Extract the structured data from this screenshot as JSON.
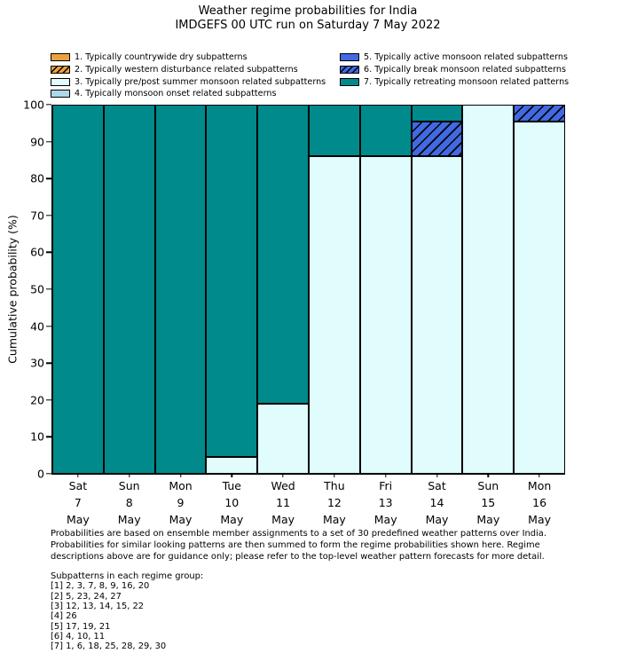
{
  "chart_data": {
    "type": "stacked-bar",
    "title": "Weather regime probabilities for India",
    "subtitle": "IMDGEFS 00 UTC run on Saturday 7 May 2022",
    "ylabel": "Cumulative probability (%)",
    "ylim": [
      0,
      100
    ],
    "yticks": [
      0,
      10,
      20,
      30,
      40,
      50,
      60,
      70,
      80,
      90,
      100
    ],
    "legend_position": "upper-left-two-columns",
    "bars": [
      {
        "day": "Sat",
        "date": "7",
        "month": "May",
        "segments": [
          {
            "regime": 7,
            "value": 100
          }
        ]
      },
      {
        "day": "Sun",
        "date": "8",
        "month": "May",
        "segments": [
          {
            "regime": 7,
            "value": 100
          }
        ]
      },
      {
        "day": "Mon",
        "date": "9",
        "month": "May",
        "segments": [
          {
            "regime": 7,
            "value": 100
          }
        ]
      },
      {
        "day": "Tue",
        "date": "10",
        "month": "May",
        "segments": [
          {
            "regime": 3,
            "value": 4.5
          },
          {
            "regime": 7,
            "value": 95.5
          }
        ]
      },
      {
        "day": "Wed",
        "date": "11",
        "month": "May",
        "segments": [
          {
            "regime": 3,
            "value": 19
          },
          {
            "regime": 7,
            "value": 81
          }
        ]
      },
      {
        "day": "Thu",
        "date": "12",
        "month": "May",
        "segments": [
          {
            "regime": 3,
            "value": 86
          },
          {
            "regime": 7,
            "value": 14
          }
        ]
      },
      {
        "day": "Fri",
        "date": "13",
        "month": "May",
        "segments": [
          {
            "regime": 3,
            "value": 86
          },
          {
            "regime": 7,
            "value": 14
          }
        ]
      },
      {
        "day": "Sat",
        "date": "14",
        "month": "May",
        "segments": [
          {
            "regime": 3,
            "value": 86
          },
          {
            "regime": 6,
            "value": 9.5
          },
          {
            "regime": 7,
            "value": 4.5
          }
        ]
      },
      {
        "day": "Sun",
        "date": "15",
        "month": "May",
        "segments": [
          {
            "regime": 3,
            "value": 100
          }
        ]
      },
      {
        "day": "Mon",
        "date": "16",
        "month": "May",
        "segments": [
          {
            "regime": 3,
            "value": 95.5
          },
          {
            "regime": 6,
            "value": 4.5
          }
        ]
      }
    ]
  },
  "legend": {
    "columns": [
      [
        {
          "id": 1,
          "label": "1. Typically countrywide dry subpatterns",
          "color": "#E8A33D",
          "hatched": false
        },
        {
          "id": 2,
          "label": "2. Typically western disturbance related subpatterns",
          "color": "#E8A33D",
          "hatched": true
        },
        {
          "id": 3,
          "label": "3. Typically pre/post summer monsoon related subpatterns",
          "color": "#E0FCFC",
          "hatched": false
        },
        {
          "id": 4,
          "label": "4. Typically monsoon onset related subpatterns",
          "color": "#ADD8E6",
          "hatched": false
        }
      ],
      [
        {
          "id": 5,
          "label": "5. Typically active monsoon related subpatterns",
          "color": "#4169E1",
          "hatched": false
        },
        {
          "id": 6,
          "label": "6. Typically break monsoon related subpatterns",
          "color": "#4169E1",
          "hatched": true
        },
        {
          "id": 7,
          "label": "7. Typically retreating monsoon related patterns",
          "color": "#008A8C",
          "hatched": false
        }
      ]
    ]
  },
  "footer": {
    "lines": [
      "Probabilities are based on ensemble member assignments to a set of 30 predefined weather patterns over India.",
      "Probabilities for similar looking patterns are then summed to form the regime probabilities shown here. Regime",
      "descriptions above are for guidance only; please refer to the top-level weather pattern forecasts for more detail."
    ]
  },
  "subpatterns": {
    "heading": "Subpatterns in each regime group:",
    "lines": [
      "[1] 2, 3, 7, 8, 9, 16, 20",
      "[2] 5, 23, 24, 27",
      "[3] 12, 13, 14, 15, 22",
      "[4] 26",
      "[5] 17, 19, 21",
      "[6] 4, 10, 11",
      "[7] 1, 6, 18, 25, 28, 29, 30"
    ]
  },
  "colors": {
    "axis": "#000000",
    "background": "#FFFFFF"
  }
}
